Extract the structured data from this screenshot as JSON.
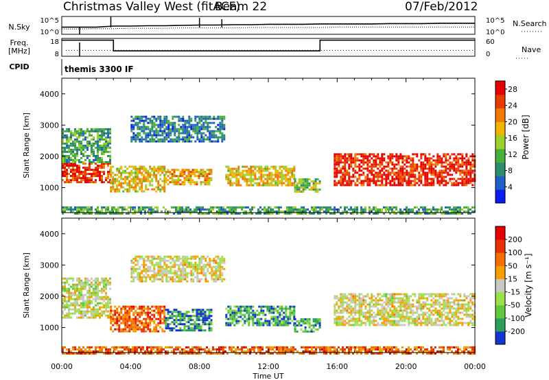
{
  "header": {
    "title": "Christmas Valley West (fitACF)",
    "beam": "Beam 22",
    "date": "07/Feb/2012"
  },
  "strips": {
    "nsky": {
      "label": "N.Sky",
      "ticks": [
        "10^5",
        "10^0"
      ],
      "values": [
        2,
        2,
        2,
        2.3,
        2.3,
        2.4,
        2.4,
        2.5,
        2.6,
        2.6,
        2.7,
        2.7,
        2.8,
        2.8,
        2.8,
        2.9,
        2.9,
        2.9,
        2.9,
        3,
        3,
        3,
        3.1,
        3.1,
        3.1
      ]
    },
    "nsearch": {
      "label": "N.Search",
      "ticks": [
        "10^5",
        "10^0"
      ],
      "values": [
        1.5,
        1.5,
        1.6,
        1.6,
        1.7,
        1.7,
        1.7,
        1.8,
        1.8,
        1.8,
        1.8,
        1.9,
        1.9,
        1.9,
        1.9,
        1.9,
        2,
        2,
        2,
        2,
        2,
        2,
        2,
        2,
        2
      ]
    },
    "freq": {
      "label": "Freq.",
      "unit": "[MHz]",
      "ticks": [
        "18",
        "8"
      ],
      "segments": [
        {
          "from": 0.0,
          "to": 1.0,
          "value": 17
        },
        {
          "from": 1.0,
          "to": 3.0,
          "value": 17
        },
        {
          "from": 3.0,
          "to": 15.0,
          "value": 11
        },
        {
          "from": 15.0,
          "to": 24.0,
          "value": 17
        }
      ]
    },
    "nave": {
      "label": "Nave",
      "ticks": [
        "60",
        "0"
      ],
      "value": 20
    },
    "cpid": {
      "label": "CPID",
      "text": "themis 3300 IF"
    }
  },
  "chart_data": [
    {
      "type": "heatmap",
      "name": "power",
      "xlabel": "",
      "ylabel": "Slant Range [km]",
      "x_ticks": [
        "00:00",
        "04:00",
        "08:00",
        "12:00",
        "16:00",
        "20:00",
        "00:00"
      ],
      "xlim": [
        0,
        24
      ],
      "ylim": [
        200,
        4500
      ],
      "y_ticks": [
        1000,
        2000,
        3000,
        4000
      ],
      "colorbar": {
        "label": "Power [dB]",
        "ticks": [
          4,
          8,
          12,
          16,
          20,
          24,
          28
        ],
        "range": [
          0,
          30
        ],
        "colors": [
          "#0a1cf0",
          "#1f5fc8",
          "#2e8c6e",
          "#46b03a",
          "#9bd12c",
          "#f2b400",
          "#f27a00",
          "#e63c00",
          "#e60000"
        ]
      },
      "regions": [
        {
          "t0": 0.0,
          "t1": 2.8,
          "r0": 1200,
          "r1": 1800,
          "level": 0.85
        },
        {
          "t0": 0.0,
          "t1": 2.8,
          "r0": 1800,
          "r1": 2900,
          "level": 0.35
        },
        {
          "t0": 2.8,
          "t1": 6.0,
          "r0": 900,
          "r1": 1700,
          "level": 0.6
        },
        {
          "t0": 6.0,
          "t1": 8.7,
          "r0": 1100,
          "r1": 1600,
          "level": 0.65
        },
        {
          "t0": 9.5,
          "t1": 13.5,
          "r0": 1100,
          "r1": 1700,
          "level": 0.6
        },
        {
          "t0": 13.5,
          "t1": 15.0,
          "r0": 900,
          "r1": 1300,
          "level": 0.45
        },
        {
          "t0": 15.8,
          "t1": 24.0,
          "r0": 1050,
          "r1": 2100,
          "level": 0.9
        },
        {
          "t0": 4.0,
          "t1": 9.5,
          "r0": 2500,
          "r1": 3300,
          "level": 0.25
        },
        {
          "t0": 0.0,
          "t1": 24.0,
          "r0": 200,
          "r1": 400,
          "level": 0.35
        }
      ]
    },
    {
      "type": "heatmap",
      "name": "velocity",
      "xlabel": "Time UT",
      "ylabel": "Slant Range [km]",
      "x_ticks": [
        "00:00",
        "04:00",
        "08:00",
        "12:00",
        "16:00",
        "20:00",
        "00:00"
      ],
      "xlim": [
        0,
        24
      ],
      "ylim": [
        200,
        4500
      ],
      "y_ticks": [
        1000,
        2000,
        3000,
        4000
      ],
      "colorbar": {
        "label": "Velocity [m s⁻¹]",
        "ticks": [
          200,
          100,
          50,
          15,
          -15,
          -50,
          -100,
          -200
        ],
        "colors": [
          "#1434d2",
          "#2aa05a",
          "#62c83c",
          "#9ee04a",
          "#c8c8c4",
          "#f5a000",
          "#f56e00",
          "#e63200",
          "#e60000"
        ]
      },
      "regions": [
        {
          "t0": 0.0,
          "t1": 2.8,
          "r0": 1300,
          "r1": 2600,
          "level": 0.45
        },
        {
          "t0": 2.8,
          "t1": 6.0,
          "r0": 900,
          "r1": 1700,
          "level": 0.75
        },
        {
          "t0": 6.0,
          "t1": 8.7,
          "r0": 900,
          "r1": 1600,
          "level": 0.15
        },
        {
          "t0": 9.5,
          "t1": 13.5,
          "r0": 1100,
          "r1": 1700,
          "level": 0.2
        },
        {
          "t0": 13.5,
          "t1": 15.0,
          "r0": 900,
          "r1": 1300,
          "level": 0.2
        },
        {
          "t0": 15.8,
          "t1": 24.0,
          "r0": 1050,
          "r1": 2100,
          "level": 0.5
        },
        {
          "t0": 4.0,
          "t1": 9.5,
          "r0": 2500,
          "r1": 3300,
          "level": 0.5
        },
        {
          "t0": 0.0,
          "t1": 24.0,
          "r0": 200,
          "r1": 400,
          "level": 0.75
        }
      ]
    }
  ]
}
